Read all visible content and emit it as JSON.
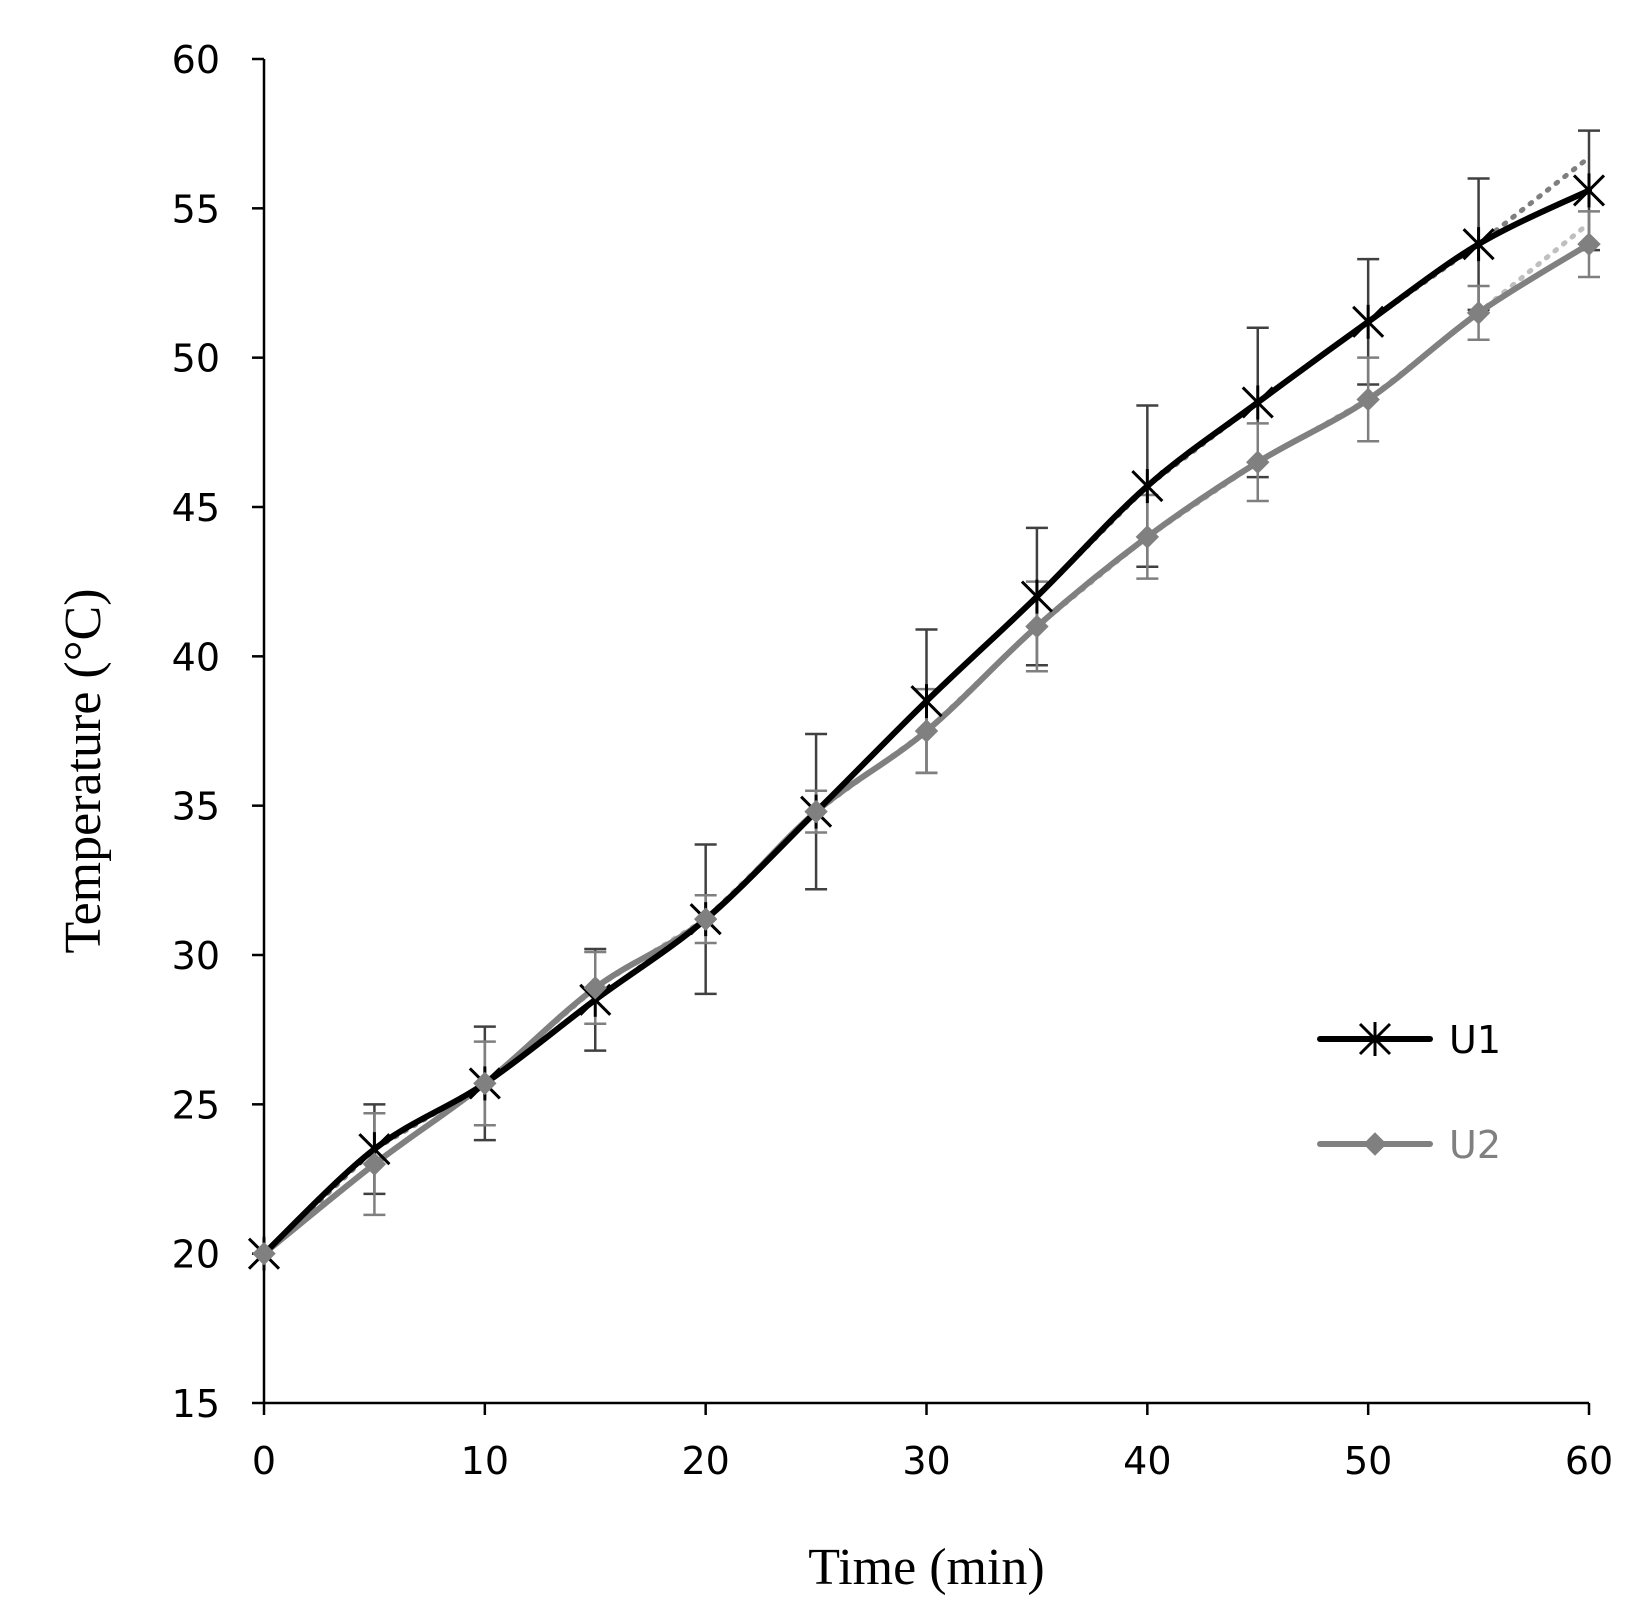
{
  "chart_data": {
    "type": "line",
    "title": "",
    "xlabel": "Time (min)",
    "ylabel": "Temperature (°C)",
    "xlim": [
      0,
      60
    ],
    "ylim": [
      15,
      60
    ],
    "x_ticks": [
      0,
      10,
      20,
      30,
      40,
      50,
      60
    ],
    "y_ticks": [
      15,
      20,
      25,
      30,
      35,
      40,
      45,
      50,
      55,
      60
    ],
    "grid": false,
    "legend_position": "lower-right",
    "x": [
      0,
      5,
      10,
      15,
      20,
      25,
      30,
      35,
      40,
      45,
      50,
      55,
      60
    ],
    "series": [
      {
        "name": "U1",
        "color": "#000000",
        "marker": "asterisk",
        "values": [
          20,
          23.5,
          25.7,
          28.5,
          31.2,
          34.8,
          38.5,
          42.0,
          45.7,
          48.5,
          51.2,
          53.8,
          55.6
        ],
        "error": [
          0,
          1.5,
          1.9,
          1.7,
          2.5,
          2.6,
          2.4,
          2.3,
          2.7,
          2.5,
          2.1,
          2.2,
          2.0
        ],
        "trend_color": "#7f7f7f",
        "trend_end": [
          60,
          56.7
        ]
      },
      {
        "name": "U2",
        "color": "#808080",
        "marker": "diamond",
        "values": [
          20,
          23.0,
          25.7,
          28.9,
          31.2,
          34.8,
          37.5,
          41.0,
          44.0,
          46.5,
          48.6,
          51.5,
          53.8
        ],
        "error": [
          0,
          1.7,
          1.4,
          1.2,
          0.8,
          0.7,
          1.4,
          1.5,
          1.4,
          1.3,
          1.4,
          0.9,
          1.1
        ],
        "trend_color": "#bfbfbf",
        "trend_end": [
          60,
          54.5
        ]
      }
    ]
  }
}
